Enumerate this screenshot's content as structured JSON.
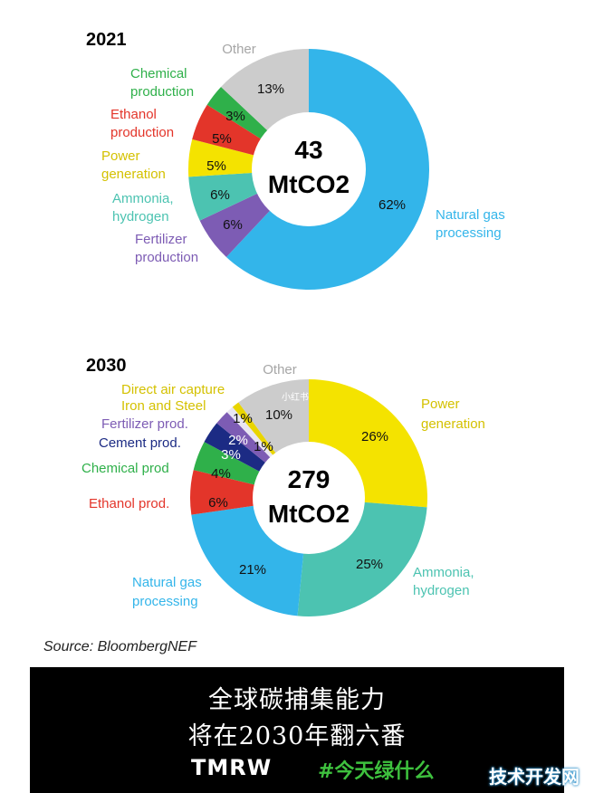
{
  "chart_data": [
    {
      "type": "pie",
      "year_label": "2021",
      "center_value": "43",
      "center_unit": "MtCO2",
      "slices": [
        {
          "name": "Natural gas processing",
          "pct_label": "62%",
          "value": 62,
          "color": "#33b5ea"
        },
        {
          "name": "Fertilizer production",
          "pct_label": "6%",
          "value": 6,
          "color": "#7d5cb4"
        },
        {
          "name": "Ammonia, hydrogen",
          "pct_label": "6%",
          "value": 6,
          "color": "#4cc3b1"
        },
        {
          "name": "Power generation",
          "pct_label": "5%",
          "value": 5,
          "color": "#f4e300"
        },
        {
          "name": "Ethanol production",
          "pct_label": "5%",
          "value": 5,
          "color": "#e3352a"
        },
        {
          "name": "Chemical production",
          "pct_label": "3%",
          "value": 3,
          "color": "#2fb04a"
        },
        {
          "name": "Other",
          "pct_label": "13%",
          "value": 13,
          "color": "#cccccc"
        }
      ],
      "labels": {
        "other": "Other",
        "chem1": "Chemical",
        "chem2": "production",
        "eth1": "Ethanol",
        "eth2": "production",
        "pow1": "Power",
        "pow2": "generation",
        "amm1": "Ammonia,",
        "amm2": "hydrogen",
        "fert1": "Fertilizer",
        "fert2": "production",
        "ng1": "Natural gas",
        "ng2": "processing"
      }
    },
    {
      "type": "pie",
      "year_label": "2030",
      "center_value": "279",
      "center_unit": "MtCO2",
      "slices": [
        {
          "name": "Power generation",
          "pct_label": "26%",
          "value": 26,
          "color": "#f4e300"
        },
        {
          "name": "Ammonia, hydrogen",
          "pct_label": "25%",
          "value": 25,
          "color": "#4cc3b1"
        },
        {
          "name": "Natural gas processing",
          "pct_label": "21%",
          "value": 21,
          "color": "#33b5ea"
        },
        {
          "name": "Ethanol prod.",
          "pct_label": "6%",
          "value": 6,
          "color": "#e3352a"
        },
        {
          "name": "Chemical prod",
          "pct_label": "4%",
          "value": 4,
          "color": "#2fb04a"
        },
        {
          "name": "Cement prod.",
          "pct_label": "3%",
          "value": 3,
          "color": "#1c2b84"
        },
        {
          "name": "Fertilizer prod.",
          "pct_label": "2%",
          "value": 2,
          "color": "#7d5cb4"
        },
        {
          "name": "Iron and Steel",
          "pct_label": "1%",
          "value": 1,
          "color": "#e9e6f2"
        },
        {
          "name": "Direct air capture",
          "pct_label": "1%",
          "value": 1,
          "color": "#e9d500"
        },
        {
          "name": "Other",
          "pct_label": "10%",
          "value": 10,
          "color": "#cccccc"
        }
      ],
      "labels": {
        "other": "Other",
        "pow1": "Power",
        "pow2": "generation",
        "amm1": "Ammonia,",
        "amm2": "hydrogen",
        "ng1": "Natural gas",
        "ng2": "processing",
        "eth": "Ethanol prod.",
        "chem": "Chemical prod",
        "cem": "Cement prod.",
        "fert": "Fertilizer prod.",
        "iron": "Iron and Steel",
        "dac": "Direct air capture"
      },
      "watermark": "小红书"
    }
  ],
  "source": "Source: BloombergNEF",
  "banner": {
    "line1": "全球碳捕集能力",
    "line2": "将在2030年翻六番",
    "brand": "TMRW",
    "tag": "#今天绿什么"
  },
  "corner_watermark": "技术开发网"
}
